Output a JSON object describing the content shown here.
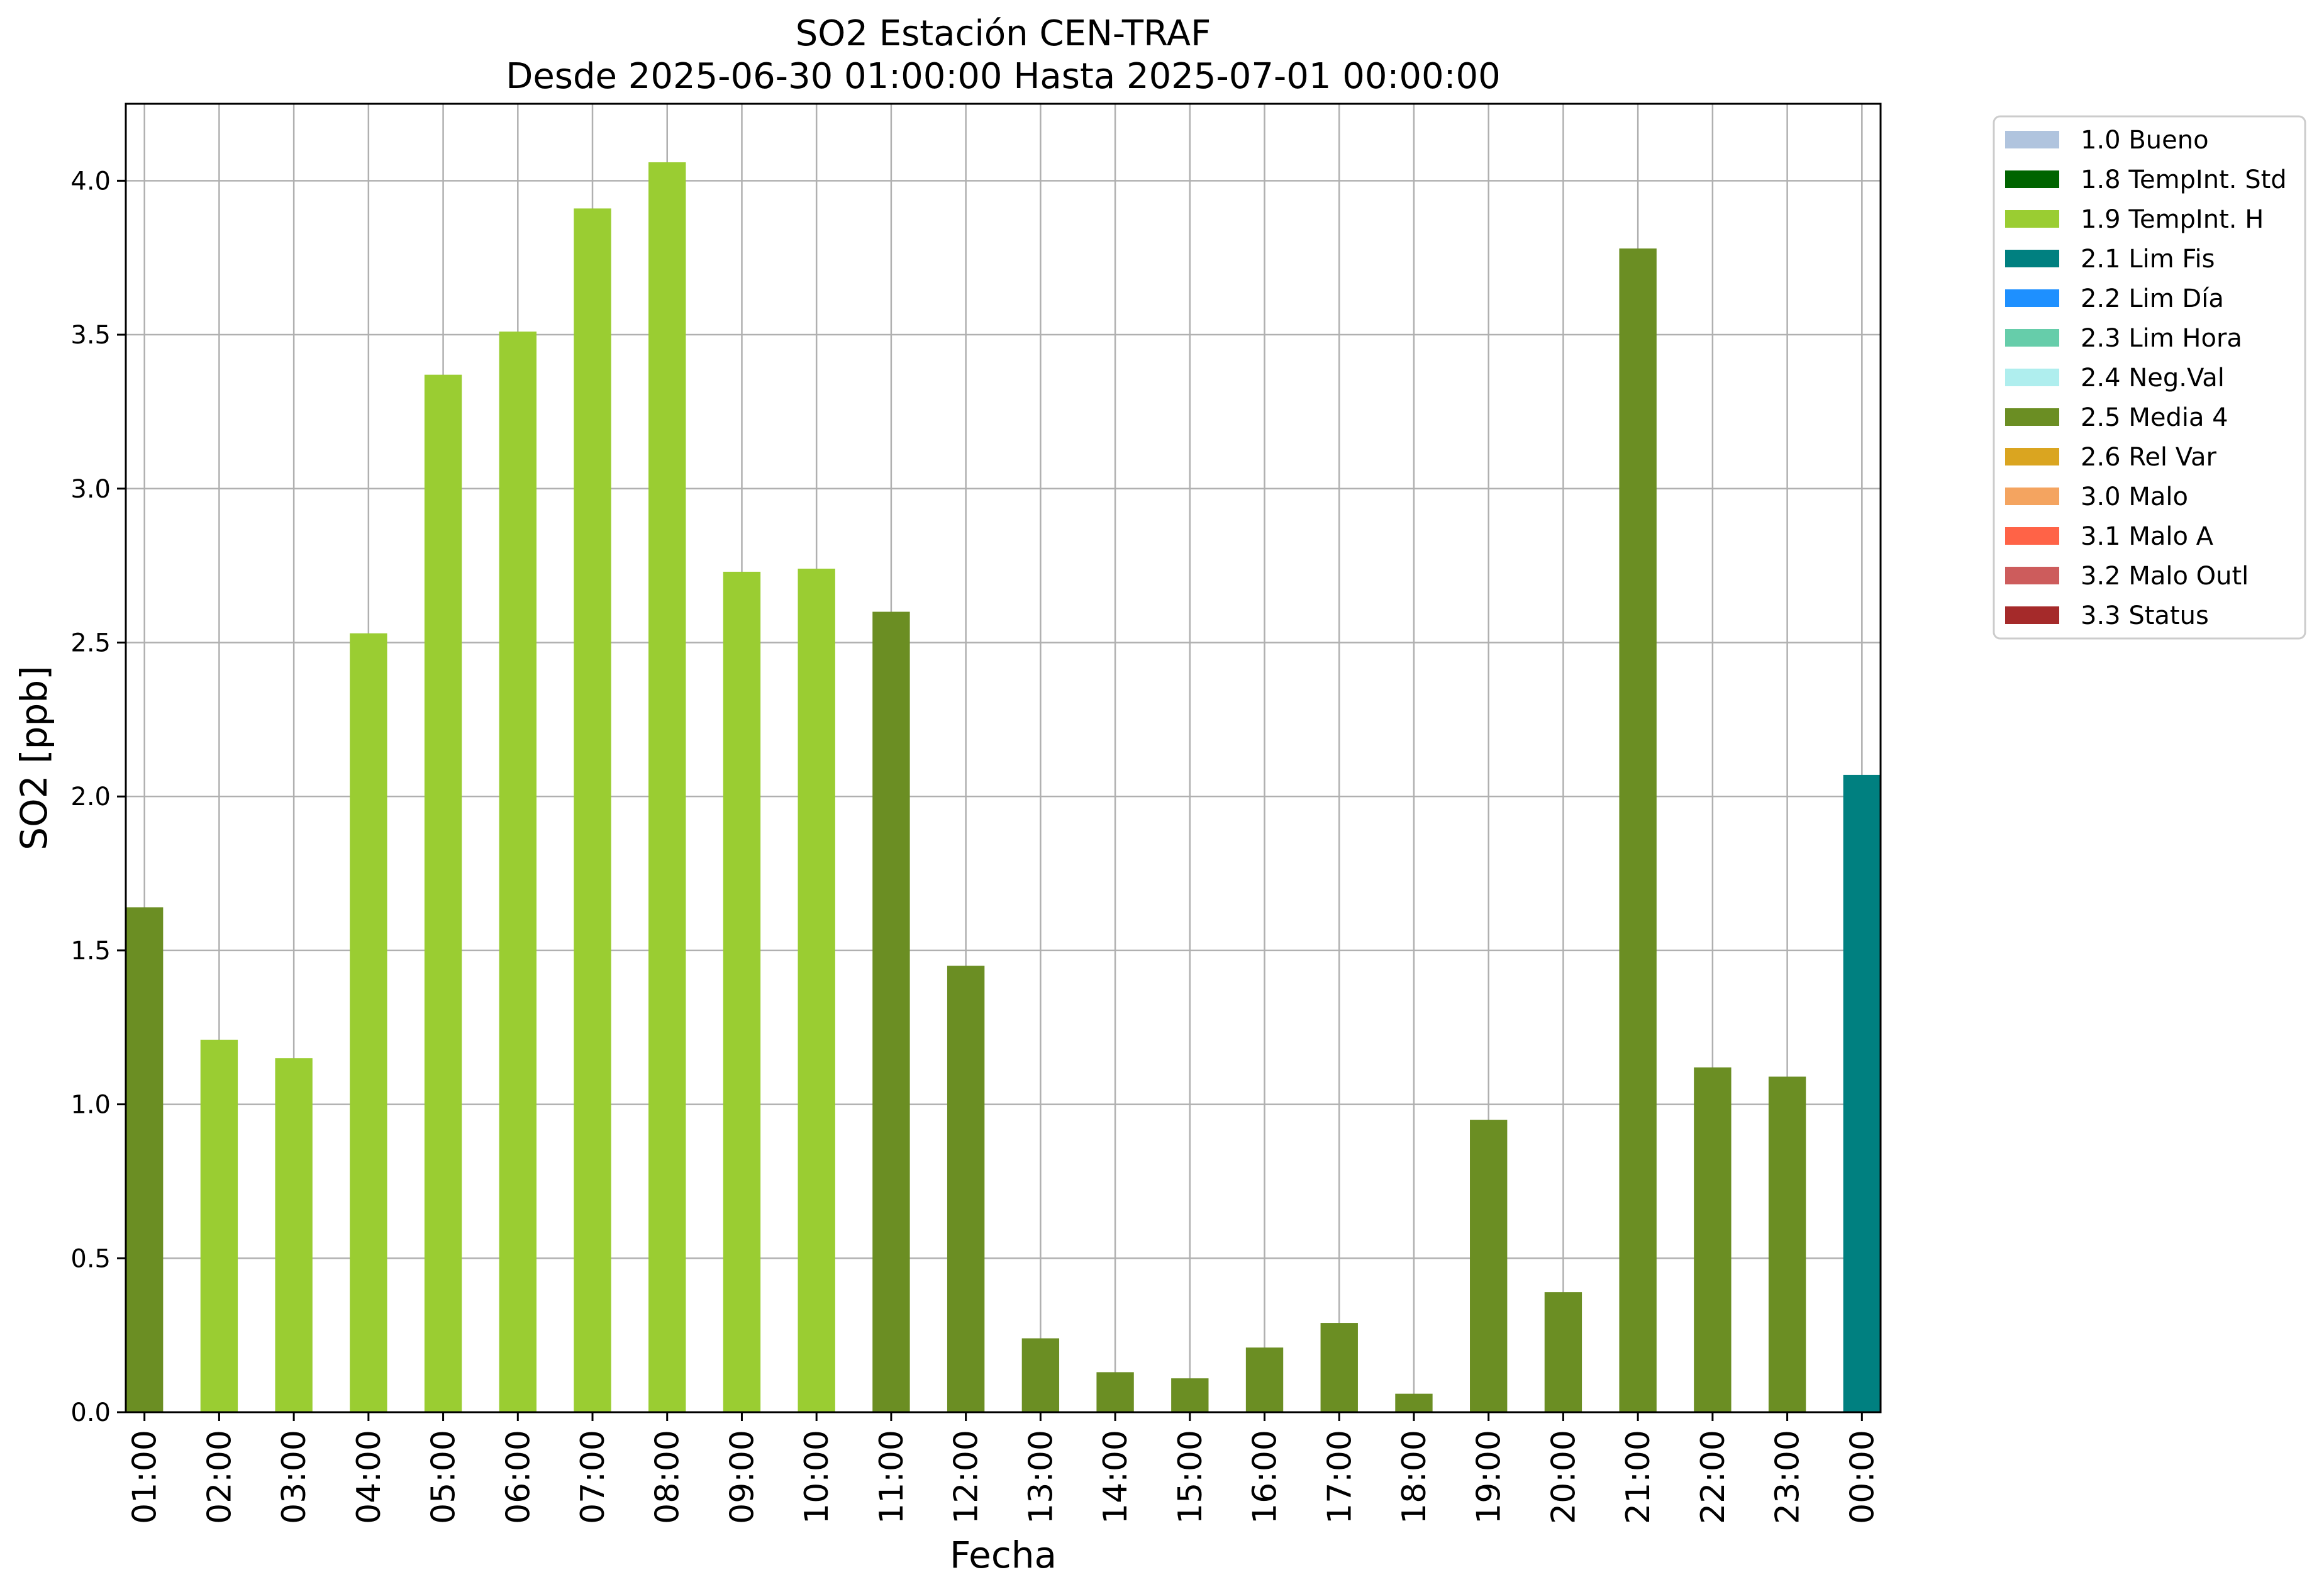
{
  "chart_data": {
    "type": "bar",
    "title": "SO2 Estación CEN-TRAF",
    "subtitle": "Desde 2025-06-30 01:00:00 Hasta 2025-07-01 00:00:00",
    "xlabel": "Fecha",
    "ylabel": "SO2 [ppb]",
    "ylim": [
      0,
      4.25
    ],
    "yticks": [
      "0.0",
      "0.5",
      "1.0",
      "1.5",
      "2.0",
      "2.5",
      "3.0",
      "3.5",
      "4.0"
    ],
    "grid": true,
    "legend_position": "outside-top-right",
    "categories": [
      "01:00",
      "02:00",
      "03:00",
      "04:00",
      "05:00",
      "06:00",
      "07:00",
      "08:00",
      "09:00",
      "10:00",
      "11:00",
      "12:00",
      "13:00",
      "14:00",
      "15:00",
      "16:00",
      "17:00",
      "18:00",
      "19:00",
      "20:00",
      "21:00",
      "22:00",
      "23:00",
      "00:00"
    ],
    "values": [
      1.64,
      1.21,
      1.15,
      2.53,
      3.37,
      3.51,
      3.91,
      4.06,
      2.73,
      2.74,
      2.6,
      1.45,
      0.24,
      0.13,
      0.11,
      0.21,
      0.29,
      0.06,
      0.95,
      0.39,
      3.78,
      1.12,
      1.09,
      2.07
    ],
    "flags": [
      "2.5",
      "1.9",
      "1.9",
      "1.9",
      "1.9",
      "1.9",
      "1.9",
      "1.9",
      "1.9",
      "1.9",
      "2.5",
      "2.5",
      "2.5",
      "2.5",
      "2.5",
      "2.5",
      "2.5",
      "2.5",
      "2.5",
      "2.5",
      "2.5",
      "2.5",
      "2.5",
      "2.1"
    ],
    "legend": [
      {
        "code": "1.0",
        "label": "1.0 Bueno",
        "color": "#b0c4de"
      },
      {
        "code": "1.8",
        "label": "1.8 TempInt. Std",
        "color": "#006400"
      },
      {
        "code": "1.9",
        "label": "1.9 TempInt. H",
        "color": "#9acd32"
      },
      {
        "code": "2.1",
        "label": "2.1 Lim Fis",
        "color": "#008080"
      },
      {
        "code": "2.2",
        "label": "2.2 Lim Día",
        "color": "#1e90ff"
      },
      {
        "code": "2.3",
        "label": "2.3 Lim Hora",
        "color": "#66cdaa"
      },
      {
        "code": "2.4",
        "label": "2.4 Neg.Val",
        "color": "#afeeee"
      },
      {
        "code": "2.5",
        "label": "2.5 Media 4",
        "color": "#6b8e23"
      },
      {
        "code": "2.6",
        "label": "2.6 Rel Var",
        "color": "#daa520"
      },
      {
        "code": "3.0",
        "label": "3.0 Malo",
        "color": "#f4a460"
      },
      {
        "code": "3.1",
        "label": "3.1 Malo A",
        "color": "#ff6347"
      },
      {
        "code": "3.2",
        "label": "3.2 Malo Outl",
        "color": "#cd5c5c"
      },
      {
        "code": "3.3",
        "label": "3.3 Status",
        "color": "#a52a2a"
      }
    ]
  }
}
